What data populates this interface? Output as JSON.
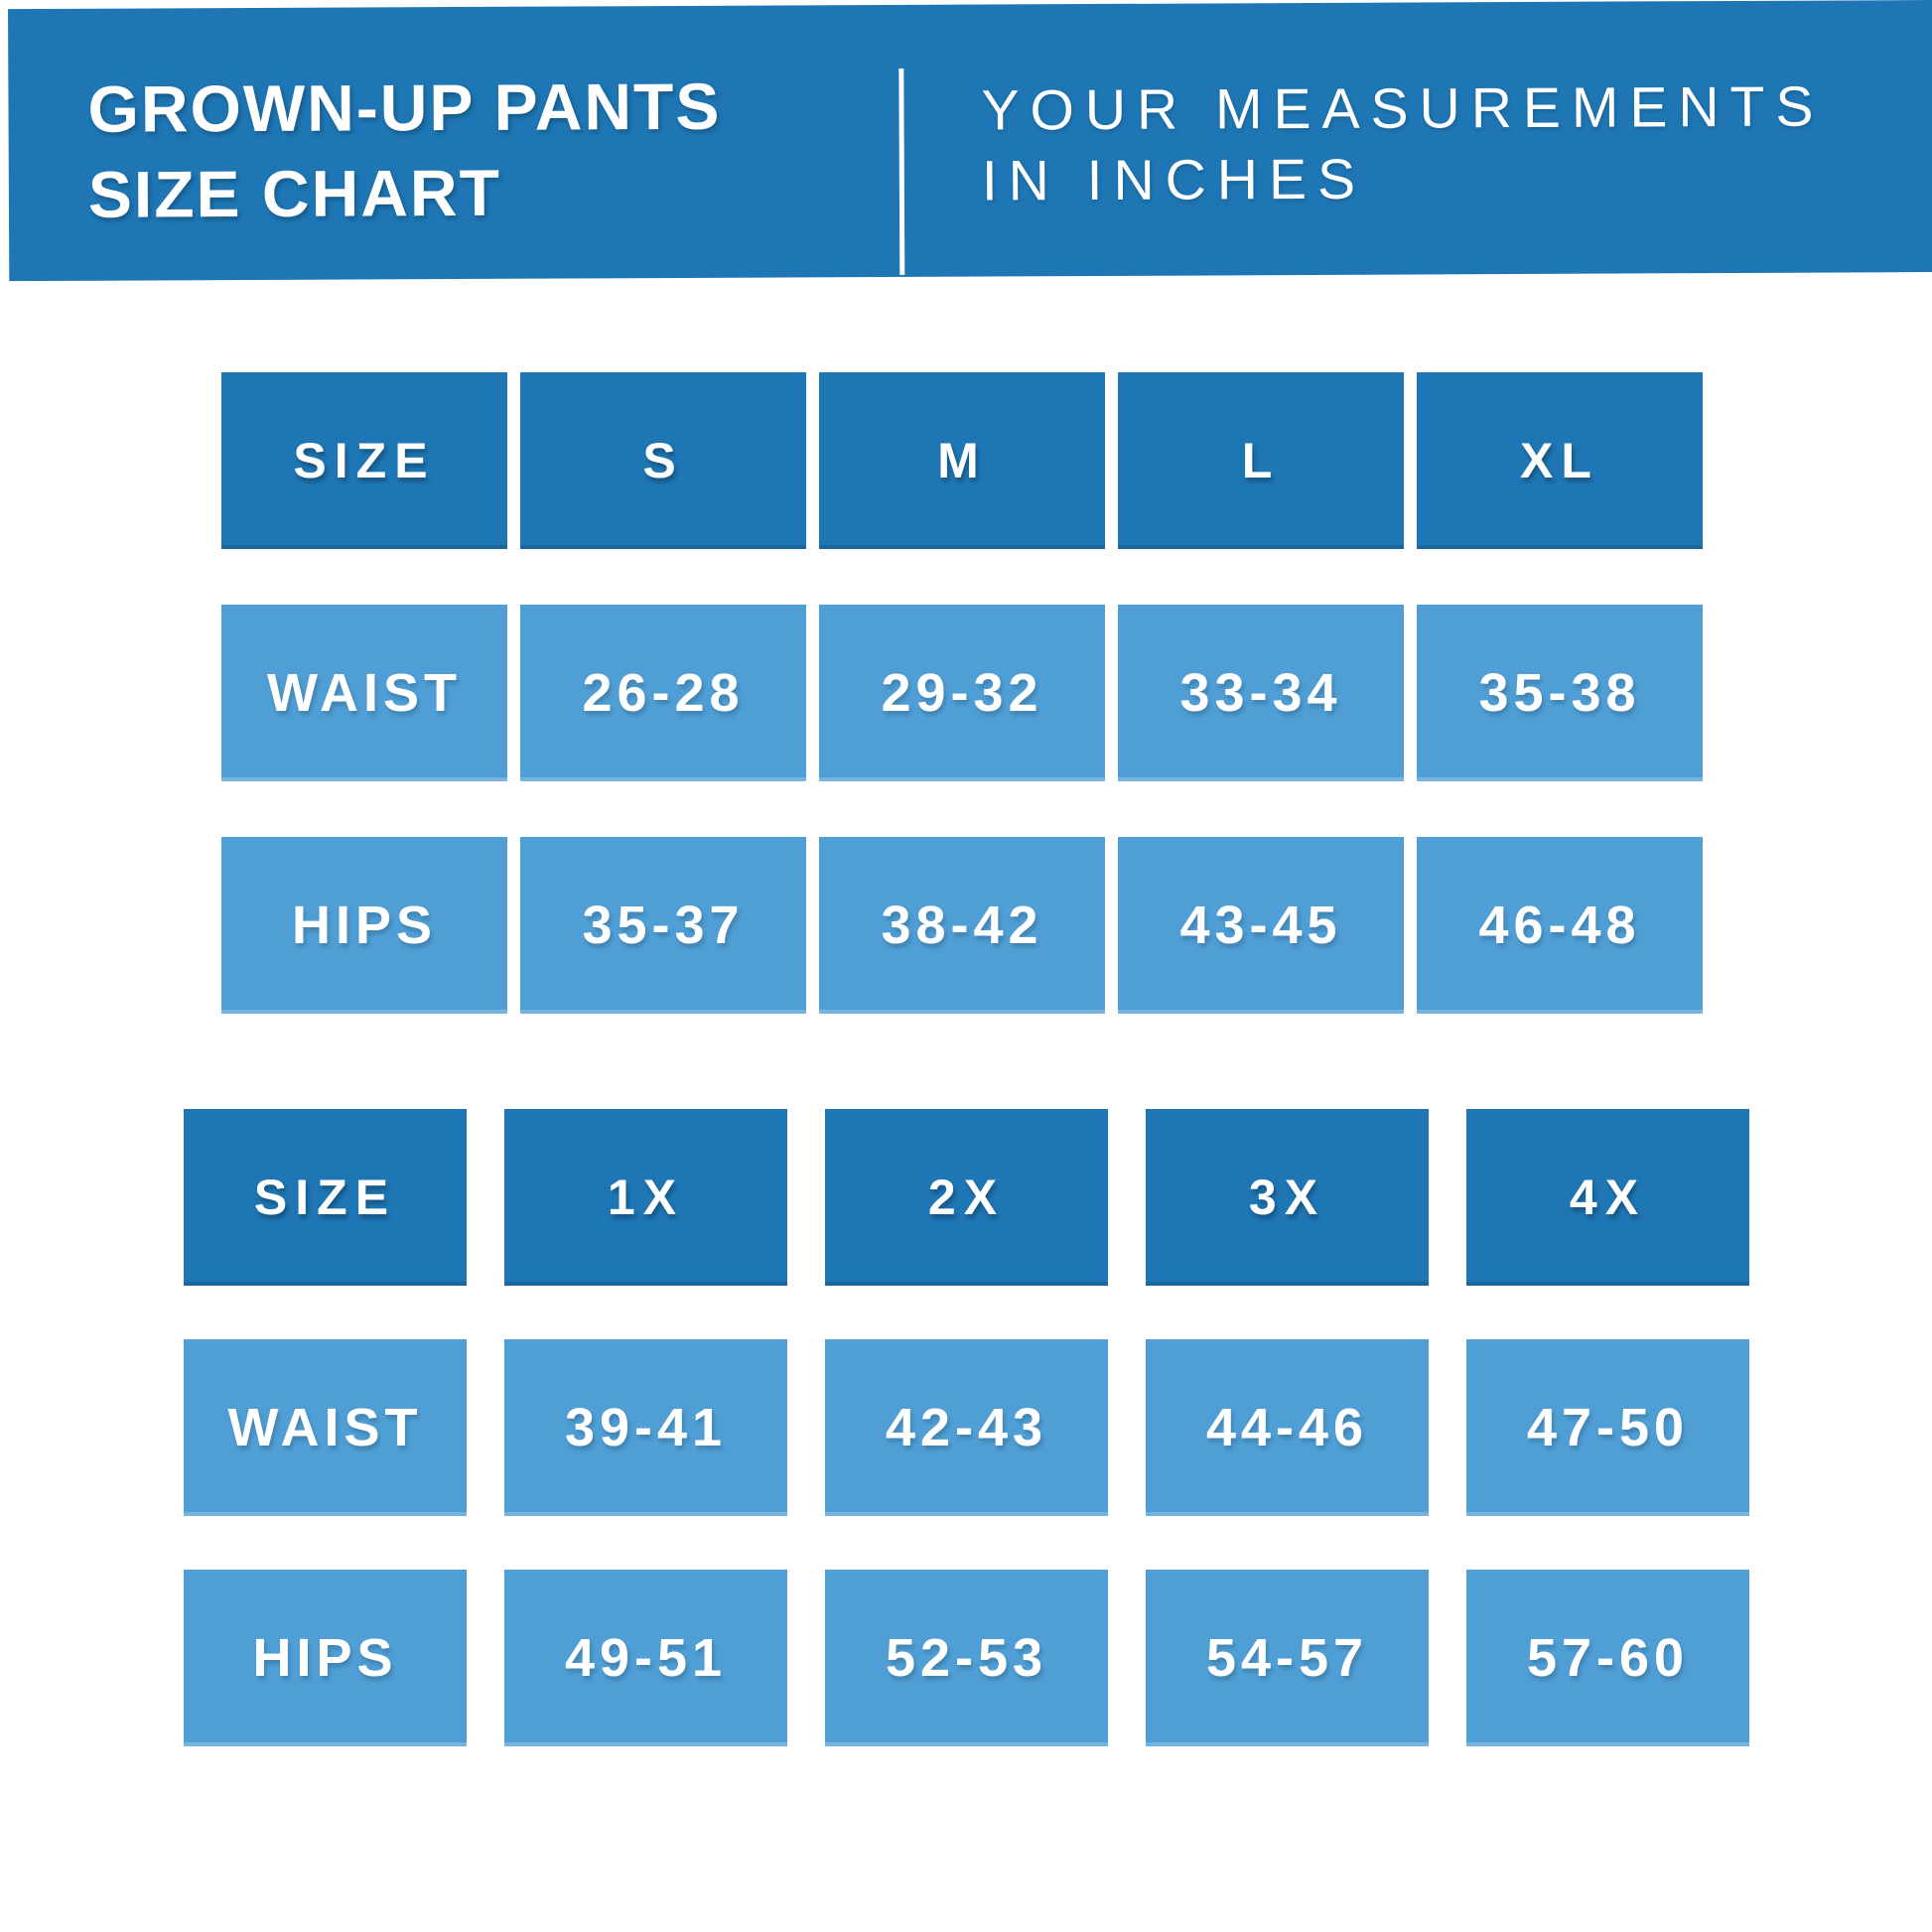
{
  "header": {
    "title_line1": "GROWN-UP PANTS",
    "title_line2": "SIZE CHART",
    "subtitle_line1": "YOUR MEASUREMENTS",
    "subtitle_line2": "IN INCHES"
  },
  "colors": {
    "dark_blue": "#1E76B4",
    "light_blue": "#4F9FD6",
    "text_white": "#FFFFFF",
    "background": "#FFFFFF"
  },
  "chart_data": [
    {
      "type": "table",
      "columns": [
        "SIZE",
        "S",
        "M",
        "L",
        "XL"
      ],
      "rows": [
        {
          "label": "WAIST",
          "values": [
            "26-28",
            "29-32",
            "33-34",
            "35-38"
          ]
        },
        {
          "label": "HIPS",
          "values": [
            "35-37",
            "38-42",
            "43-45",
            "46-48"
          ]
        }
      ]
    },
    {
      "type": "table",
      "columns": [
        "SIZE",
        "1X",
        "2X",
        "3X",
        "4X"
      ],
      "rows": [
        {
          "label": "WAIST",
          "values": [
            "39-41",
            "42-43",
            "44-46",
            "47-50"
          ]
        },
        {
          "label": "HIPS",
          "values": [
            "49-51",
            "52-53",
            "54-57",
            "57-60"
          ]
        }
      ]
    }
  ]
}
